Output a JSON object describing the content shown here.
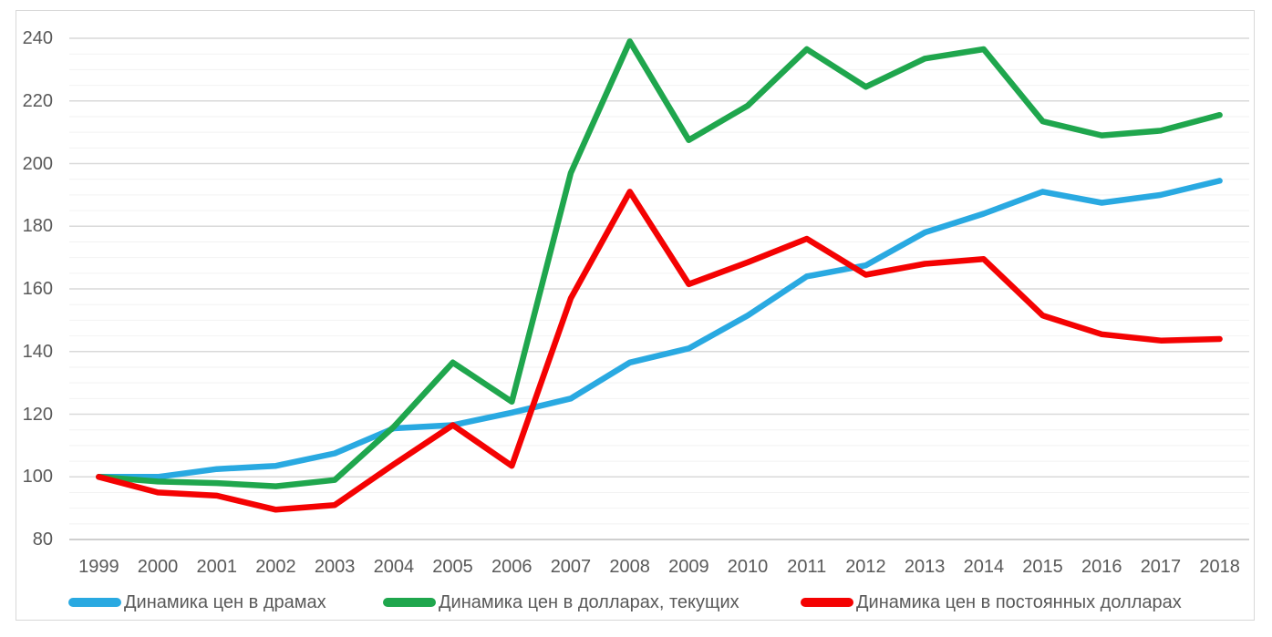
{
  "chart_data": {
    "type": "line",
    "x": [
      1999,
      2000,
      2001,
      2002,
      2003,
      2004,
      2005,
      2006,
      2007,
      2008,
      2009,
      2010,
      2011,
      2012,
      2013,
      2014,
      2015,
      2016,
      2017,
      2018
    ],
    "series": [
      {
        "name": "Динамика цен в драмах",
        "color": "#29a9e1",
        "values": [
          100,
          100,
          102.5,
          103.5,
          107.5,
          115.5,
          116.5,
          120.5,
          125,
          136.5,
          141,
          151.5,
          164,
          167.5,
          178,
          184,
          191,
          187.5,
          190,
          194.5
        ]
      },
      {
        "name": "Динамика цен в долларах, текущих",
        "color": "#1fa64d",
        "values": [
          100,
          98.5,
          98,
          97,
          99,
          116,
          136.5,
          124,
          197,
          239,
          207.5,
          218.5,
          236.5,
          224.5,
          233.5,
          236.5,
          213.5,
          209,
          210.5,
          215.5
        ]
      },
      {
        "name": "Динамика цен в постоянных долларах",
        "color": "#f40202",
        "values": [
          100,
          95,
          94,
          89.5,
          91,
          104,
          116.5,
          103.5,
          157,
          191,
          161.5,
          168.5,
          176,
          164.5,
          168,
          169.5,
          151.5,
          145.5,
          143.5,
          144
        ]
      }
    ],
    "title": "",
    "xlabel": "",
    "ylabel": "",
    "ylim": [
      80,
      245
    ],
    "yticks": [
      80,
      100,
      120,
      140,
      160,
      180,
      200,
      220,
      240
    ],
    "minor_grid_step": 5,
    "grid": true,
    "legend_position": "bottom"
  },
  "styles": {
    "minor_grid_color": "#f2f2f2",
    "major_grid_color": "#d9d9d9",
    "axis_line_color": "#bfbfbf",
    "frame_color": "#d8d8d8",
    "tick_text_color": "#595959",
    "line_width": 6.5
  },
  "layout_values": {
    "legend_x_positions": [
      75,
      420,
      878
    ]
  }
}
